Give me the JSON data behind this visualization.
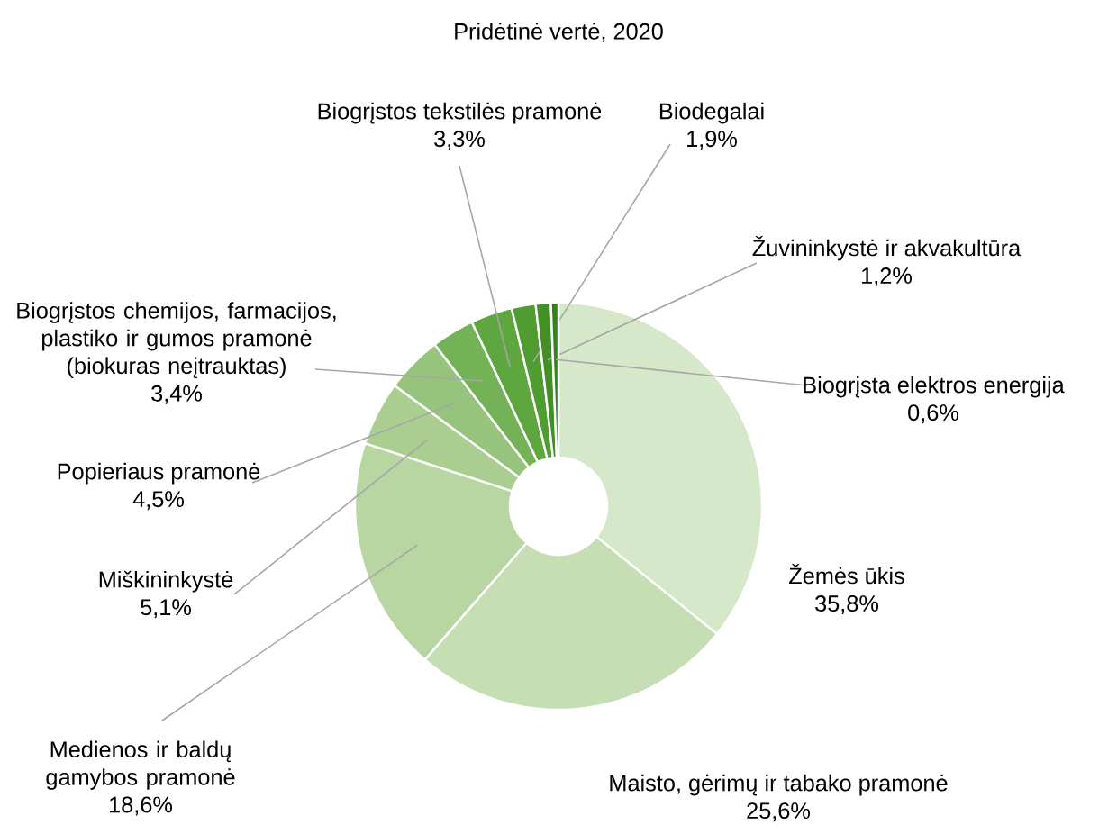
{
  "chart_data": {
    "type": "donut",
    "title": "Pridėtinė vertė, 2020",
    "categories": [
      "Žemės ūkis",
      "Maisto, gėrimų ir tabako pramonė",
      "Medienos ir baldų gamybos pramonė",
      "Miškininkystė",
      "Popieriaus pramonė",
      "Biogrįstos chemijos, farmacijos, plastiko ir gumos pramonė (biokuras neįtrauktas)",
      "Biogrįstos tekstilės pramonė",
      "Biodegalai",
      "Žuvininkystė ir akvakultūra",
      "Biogrįsta elektros energija"
    ],
    "values": [
      35.8,
      25.6,
      18.6,
      5.1,
      4.5,
      3.4,
      3.3,
      1.9,
      1.2,
      0.6
    ],
    "value_labels": [
      "35,8%",
      "25,6%",
      "18,6%",
      "5,1%",
      "4,5%",
      "3,4%",
      "3,3%",
      "1,9%",
      "1,2%",
      "0,6%"
    ],
    "colors": [
      "#d6e8ca",
      "#c5deb3",
      "#b7d6a2",
      "#a9ce8f",
      "#97c47c",
      "#74b257",
      "#5ea63e",
      "#4f9c30",
      "#428f26",
      "#35821d"
    ]
  }
}
